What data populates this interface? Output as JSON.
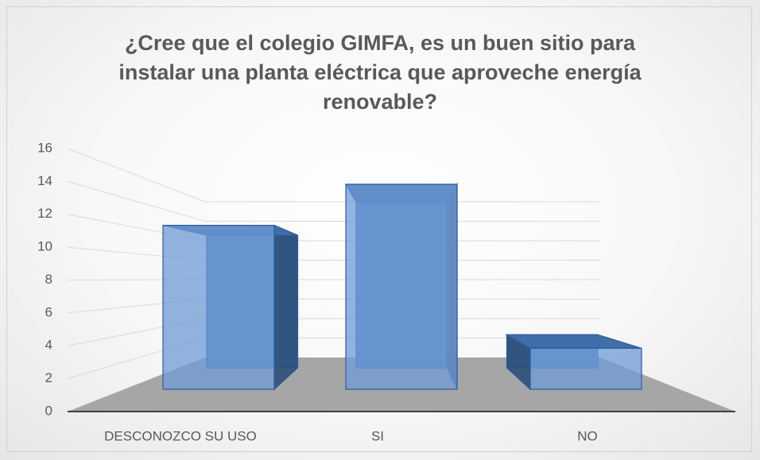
{
  "chart_data": {
    "type": "bar3d",
    "title": "¿Cree que el colegio GIMFA, es un buen sitio para instalar una planta eléctrica que aproveche energía renovable?",
    "categories": [
      "DESCONOZCO SU USO",
      "SI",
      "NO"
    ],
    "values": [
      12,
      15,
      3
    ],
    "color": "#4f81bd",
    "ylim": [
      0,
      16
    ],
    "yticks": [
      0,
      2,
      4,
      6,
      8,
      10,
      12,
      14,
      16
    ],
    "grid": true
  }
}
